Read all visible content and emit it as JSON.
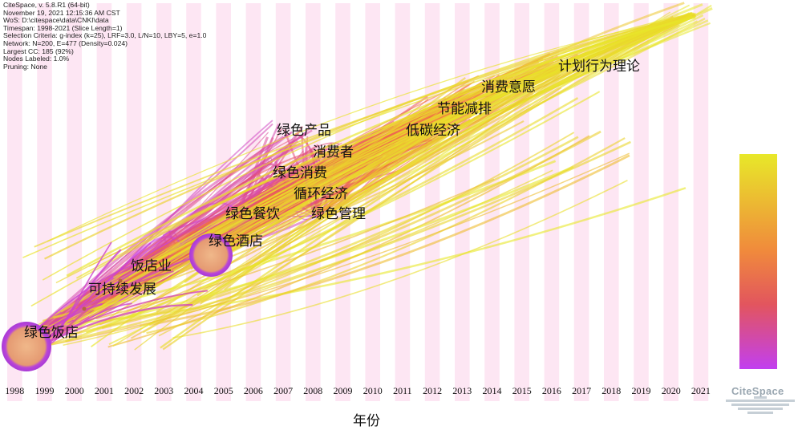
{
  "info_lines": [
    "CiteSpace, v. 5.8.R1 (64-bit)",
    "November 19, 2021 12:15:36 AM CST",
    "WoS: D:\\citespace\\data\\CNKI\\data",
    "Timespan: 1998-2021 (Slice Length=1)",
    "Selection Criteria: g-index (k=25), LRF=3.0, L/N=10, LBY=5, e=1.0",
    "Network: N=200, E=477 (Density=0.024)",
    "Largest CC: 185 (92%)",
    "Nodes Labeled: 1.0%",
    "Pruning: None"
  ],
  "years": [
    "1998",
    "1999",
    "2000",
    "2001",
    "2002",
    "2003",
    "2004",
    "2005",
    "2006",
    "2007",
    "2008",
    "2009",
    "2010",
    "2011",
    "2012",
    "2013",
    "2014",
    "2015",
    "2016",
    "2017",
    "2018",
    "2019",
    "2020",
    "2021"
  ],
  "keywords": [
    "绿色饭店",
    "可持续发展",
    "饭店业",
    "绿色酒店",
    "绿色餐饮",
    "绿色管理",
    "循环经济",
    "绿色消费",
    "消费者",
    "绿色产品",
    "低碳经济",
    "节能减排",
    "消费意愿",
    "计划行为理论"
  ],
  "x_axis_label": "年份",
  "logo_text": "CiteSpace",
  "colors": {
    "stripe": "#fde6f3",
    "gradient_top": "#e8e829",
    "gradient_mid": "#f07a44",
    "gradient_bottom": "#c640e8"
  }
}
